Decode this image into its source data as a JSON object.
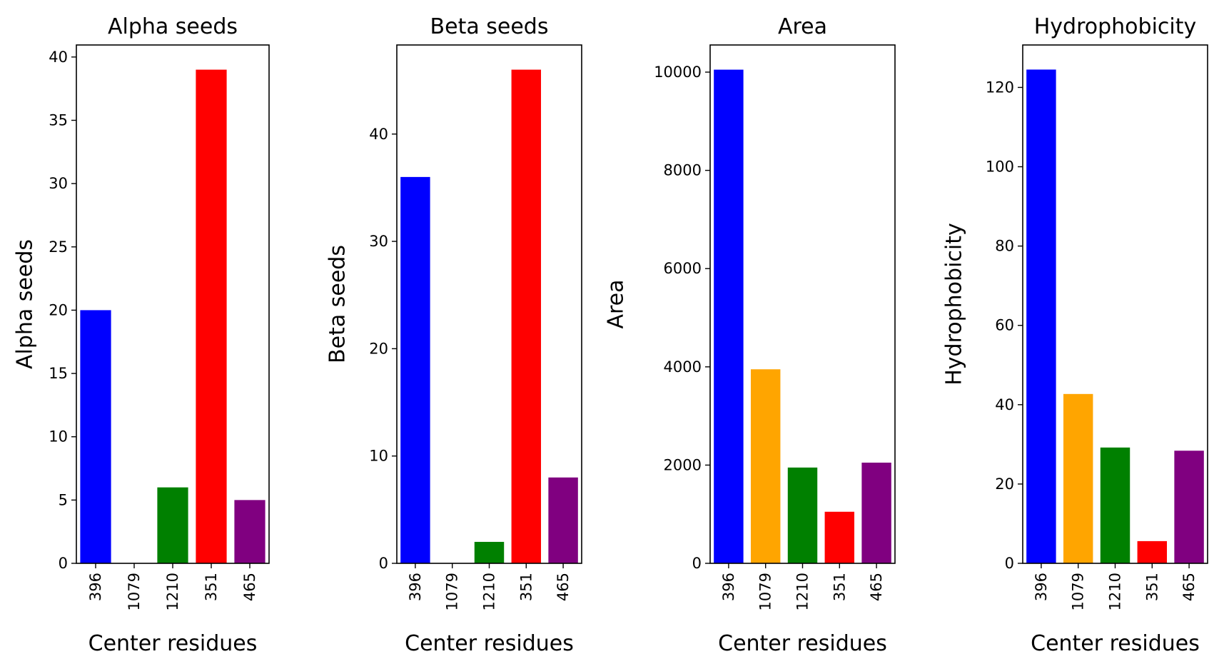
{
  "chart_data": [
    {
      "type": "bar",
      "title": "Alpha seeds",
      "xlabel": "Center residues",
      "ylabel": "Alpha seeds",
      "categories": [
        "396",
        "1079",
        "1210",
        "351",
        "465"
      ],
      "values": [
        20,
        0,
        6,
        39,
        5
      ],
      "colors": [
        "#0000ff",
        "#ffa500",
        "#008000",
        "#ff0000",
        "#800080"
      ],
      "ylim": [
        0,
        40.95
      ],
      "yticks": [
        0,
        5,
        10,
        15,
        20,
        25,
        30,
        35,
        40
      ],
      "grid": false
    },
    {
      "type": "bar",
      "title": "Beta seeds",
      "xlabel": "Center residues",
      "ylabel": "Beta seeds",
      "categories": [
        "396",
        "1079",
        "1210",
        "351",
        "465"
      ],
      "values": [
        36,
        0,
        2,
        46,
        8
      ],
      "colors": [
        "#0000ff",
        "#ffa500",
        "#008000",
        "#ff0000",
        "#800080"
      ],
      "ylim": [
        0,
        48.3
      ],
      "yticks": [
        0,
        10,
        20,
        30,
        40
      ],
      "grid": false
    },
    {
      "type": "bar",
      "title": "Area",
      "xlabel": "Center residues",
      "ylabel": "Area",
      "categories": [
        "396",
        "1079",
        "1210",
        "351",
        "465"
      ],
      "values": [
        10050,
        3950,
        1950,
        1050,
        2050
      ],
      "colors": [
        "#0000ff",
        "#ffa500",
        "#008000",
        "#ff0000",
        "#800080"
      ],
      "ylim": [
        0,
        10552.5
      ],
      "yticks": [
        0,
        2000,
        4000,
        6000,
        8000,
        10000
      ],
      "grid": false
    },
    {
      "type": "bar",
      "title": "Hydrophobicity",
      "xlabel": "Center residues",
      "ylabel": "Hydrophobicity",
      "categories": [
        "396",
        "1079",
        "1210",
        "351",
        "465"
      ],
      "values": [
        124.5,
        42.7,
        29.2,
        5.6,
        28.4
      ],
      "colors": [
        "#0000ff",
        "#ffa500",
        "#008000",
        "#ff0000",
        "#800080"
      ],
      "ylim": [
        0,
        130.7
      ],
      "yticks": [
        0,
        20,
        40,
        60,
        80,
        100,
        120
      ],
      "grid": false
    }
  ]
}
